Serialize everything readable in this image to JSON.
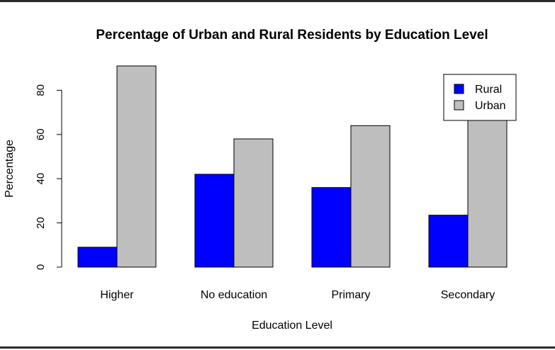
{
  "chart_data": {
    "type": "bar",
    "title": "Percentage of Urban and Rural Residents by Education Level",
    "xlabel": "Education Level",
    "ylabel": "Percentage",
    "categories": [
      "Higher",
      "No education",
      "Primary",
      "Secondary"
    ],
    "series": [
      {
        "name": "Rural",
        "color": "#0000ff",
        "values": [
          9,
          42,
          36,
          23.5
        ]
      },
      {
        "name": "Urban",
        "color": "#bebebe",
        "values": [
          91,
          58,
          64,
          76.5
        ]
      }
    ],
    "yticks": [
      0,
      20,
      40,
      60,
      80
    ],
    "ylim": [
      0,
      91
    ],
    "legend_position": "top-right",
    "grid": false
  }
}
